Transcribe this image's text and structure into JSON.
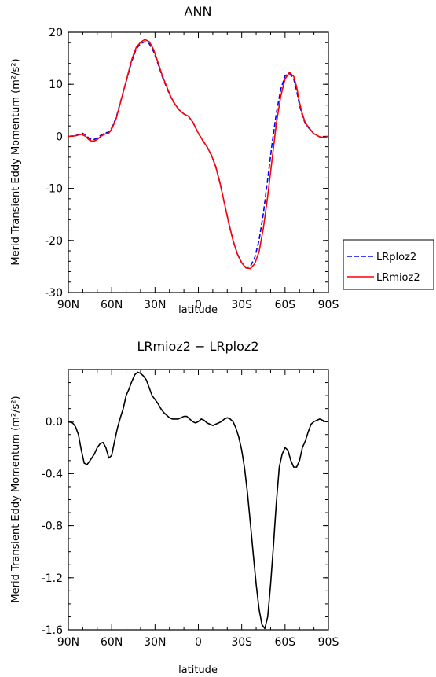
{
  "chart_data": [
    {
      "type": "line",
      "title": "ANN",
      "xlabel": "latitude",
      "ylabel": "Merid Transient Eddy Momentum (m²/s²)",
      "xlim": [
        90,
        -90
      ],
      "ylim": [
        -30,
        20
      ],
      "x_ticks": [
        90,
        60,
        30,
        0,
        -30,
        -60,
        -90
      ],
      "x_tick_labels": [
        "90N",
        "60N",
        "30N",
        "0",
        "30S",
        "60S",
        "90S"
      ],
      "y_ticks": [
        -30,
        -20,
        -10,
        0,
        10,
        20
      ],
      "y_tick_labels": [
        "-30",
        "-20",
        "-10",
        "0",
        "10",
        "20"
      ],
      "legend_position": "right",
      "series": [
        {
          "name": "LRploz2",
          "color": "#0000ff",
          "dash": "dashed",
          "x": [
            90,
            85,
            81,
            78,
            76,
            74,
            72,
            70,
            67,
            64,
            62,
            60,
            57,
            54,
            50,
            46,
            43,
            40,
            37,
            34,
            31,
            28,
            25,
            22,
            19,
            16,
            13,
            10,
            7,
            4,
            2,
            0,
            -3,
            -6,
            -9,
            -12,
            -15,
            -18,
            -21,
            -24,
            -27,
            -30,
            -33,
            -36,
            -39,
            -42,
            -45,
            -48,
            -51,
            -54,
            -57,
            -60,
            -63,
            -66,
            -68,
            -70,
            -72,
            -74,
            -77,
            -80,
            -84,
            -87,
            -90
          ],
          "y": [
            0,
            0.1,
            0.7,
            0.3,
            -0.3,
            -0.6,
            -0.6,
            -0.3,
            0.3,
            0.7,
            0.8,
            1.6,
            3.5,
            6.5,
            10.5,
            14.5,
            16.8,
            17.8,
            18.2,
            17.8,
            16.3,
            14.0,
            11.5,
            9.4,
            7.5,
            6.0,
            5.0,
            4.3,
            3.9,
            2.8,
            1.7,
            0.6,
            -0.8,
            -2.0,
            -3.6,
            -5.8,
            -9.0,
            -12.8,
            -16.6,
            -20.0,
            -22.6,
            -24.3,
            -25.2,
            -25.0,
            -23.3,
            -20.0,
            -14.8,
            -8.2,
            -1.5,
            4.5,
            9.0,
            11.6,
            12.1,
            11.0,
            8.8,
            6.0,
            4.0,
            2.4,
            1.4,
            0.5,
            -0.1,
            -0.2,
            0
          ]
        },
        {
          "name": "LRmioz2",
          "color": "#ff0000",
          "dash": "solid",
          "x": [
            90,
            85,
            81,
            78,
            76,
            74,
            72,
            70,
            67,
            64,
            62,
            60,
            57,
            54,
            50,
            46,
            43,
            40,
            37,
            34,
            31,
            28,
            25,
            22,
            19,
            16,
            13,
            10,
            7,
            4,
            2,
            0,
            -3,
            -6,
            -9,
            -12,
            -15,
            -18,
            -21,
            -24,
            -27,
            -30,
            -33,
            -36,
            -39,
            -42,
            -45,
            -48,
            -51,
            -54,
            -57,
            -60,
            -63,
            -66,
            -68,
            -70,
            -72,
            -74,
            -77,
            -80,
            -84,
            -87,
            -90
          ],
          "y": [
            0,
            0.1,
            0.4,
            0.0,
            -0.6,
            -0.9,
            -0.9,
            -0.6,
            0.1,
            0.5,
            0.6,
            1.4,
            3.3,
            6.4,
            10.6,
            14.8,
            17.1,
            18.1,
            18.6,
            18.2,
            16.7,
            14.3,
            11.7,
            9.6,
            7.6,
            6.1,
            5.0,
            4.3,
            3.9,
            2.8,
            1.7,
            0.6,
            -0.8,
            -2.0,
            -3.6,
            -5.8,
            -9.0,
            -12.8,
            -16.6,
            -20.0,
            -22.6,
            -24.3,
            -25.3,
            -25.4,
            -24.5,
            -22.2,
            -17.6,
            -11.5,
            -4.5,
            2.5,
            7.7,
            11.0,
            12.3,
            11.5,
            9.5,
            6.5,
            4.3,
            2.6,
            1.5,
            0.5,
            -0.1,
            -0.2,
            0
          ]
        }
      ]
    },
    {
      "type": "line",
      "title": "LRmioz2 − LRploz2",
      "xlabel": "latitude",
      "ylabel": "Merid Transient Eddy Momentum (m²/s²)",
      "xlim": [
        90,
        -90
      ],
      "ylim": [
        -1.6,
        0.4
      ],
      "x_ticks": [
        90,
        60,
        30,
        0,
        -30,
        -60,
        -90
      ],
      "x_tick_labels": [
        "90N",
        "60N",
        "30N",
        "0",
        "30S",
        "60S",
        "90S"
      ],
      "y_ticks": [
        -1.6,
        -1.2,
        -0.8,
        -0.4,
        0.0
      ],
      "y_tick_labels": [
        "-1.6",
        "-1.2",
        "-0.8",
        "-0.4",
        "0.0"
      ],
      "series": [
        {
          "color": "#000000",
          "dash": "solid",
          "x": [
            90,
            87,
            85,
            83,
            81,
            79,
            77,
            75,
            72,
            70,
            68,
            66,
            64,
            62,
            60,
            58,
            56,
            54,
            52,
            50,
            48,
            46,
            44,
            42,
            40,
            38,
            36,
            34,
            32,
            30,
            28,
            26,
            24,
            22,
            20,
            18,
            16,
            14,
            12,
            10,
            8,
            6,
            4,
            2,
            0,
            -2,
            -4,
            -6,
            -8,
            -10,
            -12,
            -14,
            -16,
            -18,
            -20,
            -22,
            -24,
            -26,
            -28,
            -30,
            -32,
            -34,
            -36,
            -38,
            -40,
            -42,
            -44,
            -46,
            -48,
            -50,
            -52,
            -53,
            -54,
            -56,
            -58,
            -60,
            -62,
            -64,
            -66,
            -68,
            -70,
            -72,
            -74,
            -76,
            -78,
            -80,
            -82,
            -84,
            -86,
            -88,
            -90
          ],
          "y": [
            0.0,
            -0.01,
            -0.04,
            -0.1,
            -0.22,
            -0.32,
            -0.33,
            -0.3,
            -0.25,
            -0.2,
            -0.17,
            -0.16,
            -0.2,
            -0.28,
            -0.26,
            -0.15,
            -0.05,
            0.03,
            0.1,
            0.2,
            0.25,
            0.31,
            0.36,
            0.38,
            0.37,
            0.35,
            0.32,
            0.26,
            0.2,
            0.17,
            0.14,
            0.1,
            0.07,
            0.05,
            0.03,
            0.02,
            0.02,
            0.02,
            0.03,
            0.04,
            0.04,
            0.02,
            0.0,
            -0.01,
            0.0,
            0.02,
            0.01,
            -0.01,
            -0.02,
            -0.03,
            -0.02,
            -0.01,
            0.0,
            0.02,
            0.03,
            0.02,
            0.0,
            -0.05,
            -0.12,
            -0.22,
            -0.36,
            -0.55,
            -0.78,
            -1.02,
            -1.25,
            -1.44,
            -1.56,
            -1.59,
            -1.5,
            -1.25,
            -0.95,
            -0.78,
            -0.62,
            -0.35,
            -0.25,
            -0.2,
            -0.22,
            -0.3,
            -0.35,
            -0.35,
            -0.3,
            -0.2,
            -0.15,
            -0.08,
            -0.02,
            0.0,
            0.01,
            0.02,
            0.01,
            0.0,
            0.0
          ]
        }
      ]
    }
  ]
}
